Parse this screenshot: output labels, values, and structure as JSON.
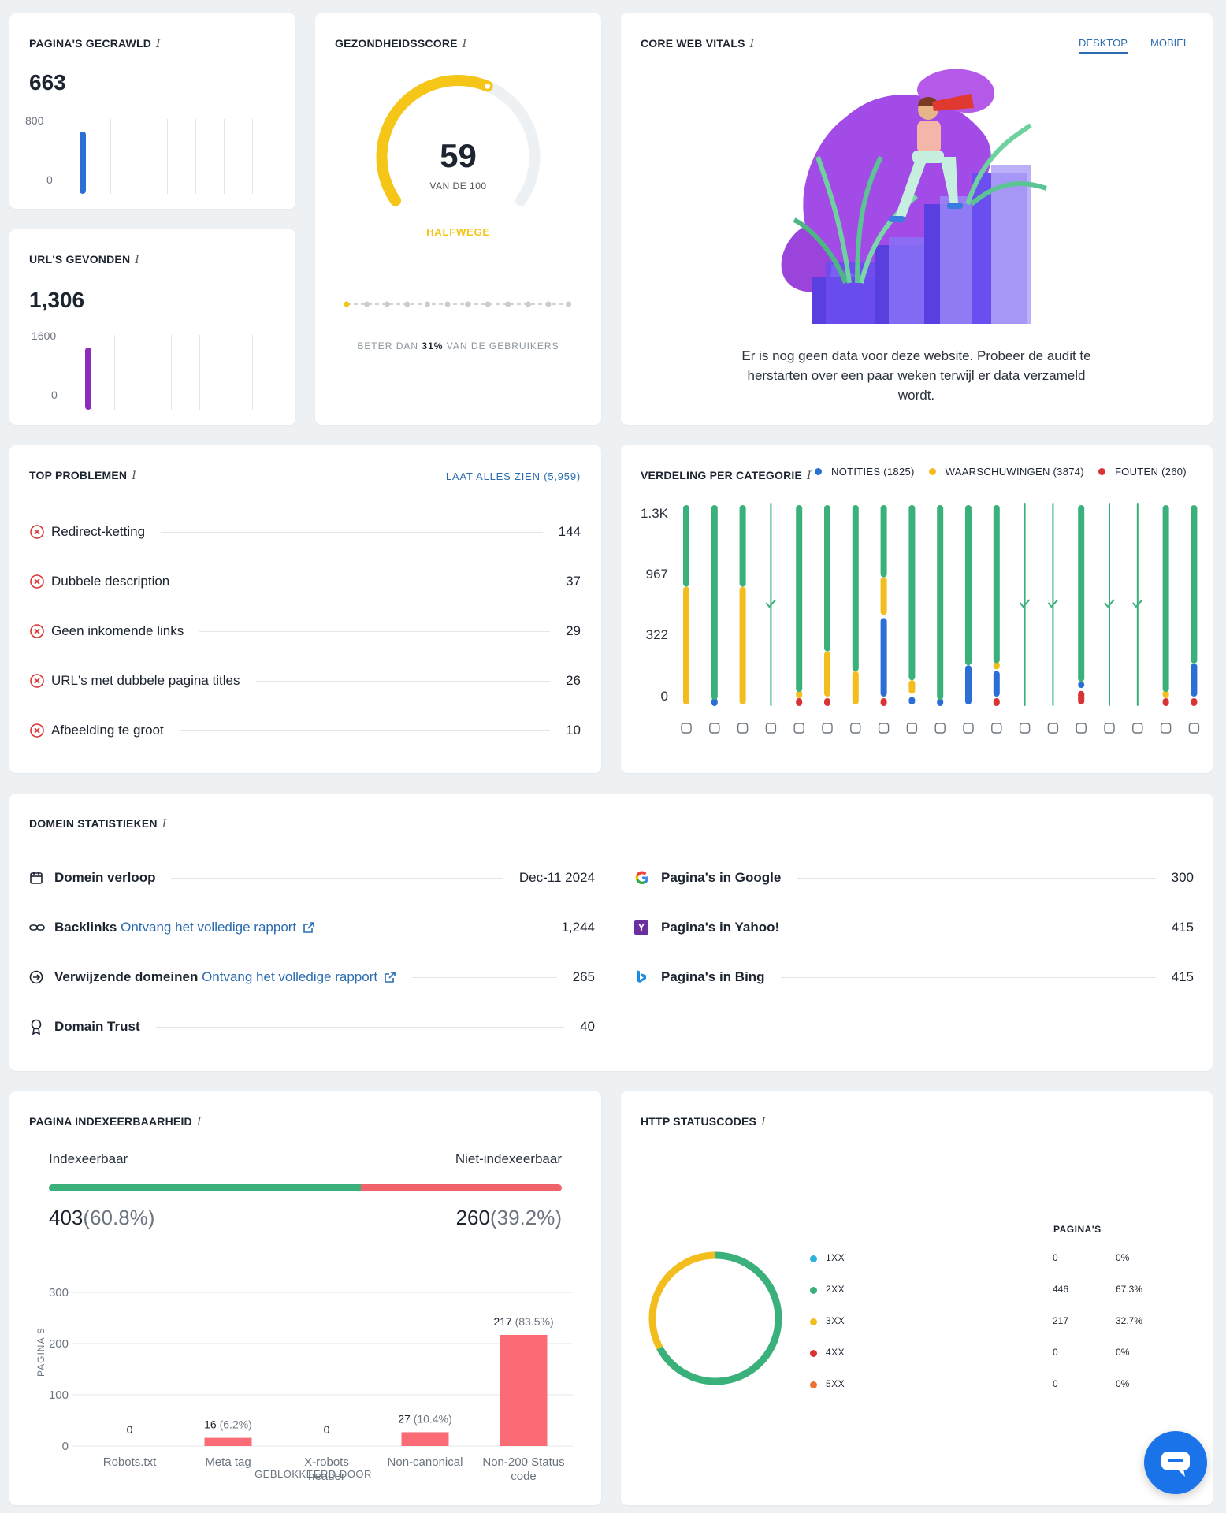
{
  "crawled": {
    "title": "PAGINA'S GECRAWLD",
    "info": "i",
    "value": "663",
    "axis_max": "800",
    "axis_min": "0"
  },
  "urls": {
    "title": "URL'S GEVONDEN",
    "info": "i",
    "value": "1,306",
    "axis_max": "1600",
    "axis_min": "0"
  },
  "health": {
    "title": "GEZONDHEIDSSCORE",
    "info": "i",
    "score": "59",
    "of": "VAN DE 100",
    "status": "HALFWEGE",
    "score_fraction": 0.59,
    "better_pre": "BETER DAN",
    "better_pct": "31%",
    "better_post": "VAN DE GEBRUIKERS"
  },
  "cwv": {
    "title": "CORE WEB VITALS",
    "info": "i",
    "tab_desktop": "DESKTOP",
    "tab_mobile": "MOBIEL",
    "message": "Er is nog geen data voor deze website. Probeer de audit te herstarten over een paar weken terwijl er data verzameld wordt."
  },
  "top": {
    "title": "TOP PROBLEMEN",
    "info": "i",
    "link": "LAAT ALLES ZIEN (5,959)",
    "items": [
      {
        "label": "Redirect-ketting",
        "value": "144"
      },
      {
        "label": "Dubbele description",
        "value": "37"
      },
      {
        "label": "Geen inkomende links",
        "value": "29"
      },
      {
        "label": "URL's met dubbele pagina titles",
        "value": "26"
      },
      {
        "label": "Afbeelding te groot",
        "value": "10"
      }
    ]
  },
  "dist": {
    "title": "VERDELING PER CATEGORIE",
    "info": "i",
    "legend": [
      {
        "label": "NOTITIES (1825)",
        "color": "#2b6fd6"
      },
      {
        "label": "WAARSCHUWINGEN (3874)",
        "color": "#f2bd1d"
      },
      {
        "label": "FOUTEN (260)",
        "color": "#d93434"
      }
    ],
    "y_ticks": [
      "1.3K",
      "967",
      "322",
      "0"
    ]
  },
  "domain": {
    "title": "DOMEIN STATISTIEKEN",
    "info": "i",
    "left": [
      {
        "label": "Domein verloop",
        "link": "",
        "value": "Dec-11 2024"
      },
      {
        "label": "Backlinks",
        "link": "Ontvang het volledige rapport",
        "value": "1,244"
      },
      {
        "label": "Verwijzende domeinen",
        "link": "Ontvang het volledige rapport",
        "value": "265"
      },
      {
        "label": "Domain Trust",
        "link": "",
        "value": "40"
      }
    ],
    "right": [
      {
        "label": "Pagina's in Google",
        "value": "300"
      },
      {
        "label": "Pagina's in Yahoo!",
        "value": "415"
      },
      {
        "label": "Pagina's in Bing",
        "value": "415"
      }
    ]
  },
  "index": {
    "title": "PAGINA INDEXEERBAARHEID",
    "info": "i",
    "left_label": "Indexeerbaar",
    "right_label": "Niet-indexeerbaar",
    "left_val": "403",
    "left_pct": "(60.8%)",
    "right_val": "260",
    "right_pct": "(39.2%)",
    "split_fraction": 0.608,
    "ylabel": "PAGINA'S",
    "xlabel": "GEBLOKKEERD DOOR"
  },
  "http": {
    "title": "HTTP STATUSCODES",
    "info": "i",
    "col_header": "PAGINA'S",
    "rows": [
      {
        "code": "1XX",
        "count": "0",
        "pct": "0%",
        "color": "#2bb3d9"
      },
      {
        "code": "2XX",
        "count": "446",
        "pct": "67.3%",
        "color": "#3ab07a"
      },
      {
        "code": "3XX",
        "count": "217",
        "pct": "32.7%",
        "color": "#f2bd1d"
      },
      {
        "code": "4XX",
        "count": "0",
        "pct": "0%",
        "color": "#d93434"
      },
      {
        "code": "5XX",
        "count": "0",
        "pct": "0%",
        "color": "#f07033"
      }
    ]
  },
  "chart_data": [
    {
      "type": "bar",
      "title": "PAGINA INDEXEERBAARHEID",
      "xlabel": "GEBLOKKEERD DOOR",
      "ylabel": "PAGINA'S",
      "ylim": [
        0,
        300
      ],
      "y_ticks": [
        "300",
        "200",
        "100",
        "0"
      ],
      "categories": [
        "Robots.txt",
        "Meta tag",
        "X-robots header",
        "Non-canonical",
        "Non-200 Status code"
      ],
      "values": [
        0,
        16,
        0,
        27,
        217
      ],
      "labels": [
        {
          "v": "0",
          "p": ""
        },
        {
          "v": "16",
          "p": "(6.2%)"
        },
        {
          "v": "0",
          "p": ""
        },
        {
          "v": "27",
          "p": "(10.4%)"
        },
        {
          "v": "217",
          "p": "(83.5%)"
        }
      ]
    },
    {
      "type": "pie",
      "title": "HTTP STATUSCODES",
      "categories": [
        "1XX",
        "2XX",
        "3XX",
        "4XX",
        "5XX"
      ],
      "values": [
        0,
        446,
        217,
        0,
        0
      ]
    },
    {
      "type": "bar",
      "title": "VERDELING PER CATEGORIE",
      "ylim": [
        0,
        1300
      ],
      "series_colors": {
        "notities": "#2b6fd6",
        "waarschuwingen": "#f2bd1d",
        "fouten": "#d93434",
        "ok": "#3ab07a"
      },
      "columns": [
        {
          "icon": "cube-icon",
          "warn": 780,
          "note": 0,
          "err": 0
        },
        {
          "icon": "bolt-icon",
          "warn": 0,
          "note": 8,
          "err": 0
        },
        {
          "icon": "code-icon",
          "warn": 780,
          "note": 0,
          "err": 0
        },
        {
          "icon": "wind-icon",
          "check": true
        },
        {
          "icon": "text-icon",
          "warn": 20,
          "note": 0,
          "err": 8
        },
        {
          "icon": "image-icon",
          "warn": 300,
          "note": 0,
          "err": 8
        },
        {
          "icon": "mobile-icon",
          "warn": 220,
          "note": 0,
          "err": 0
        },
        {
          "icon": "pulse-icon",
          "warn": 250,
          "note": 520,
          "err": 8
        },
        {
          "icon": "document-icon",
          "warn": 90,
          "note": 50,
          "err": 0
        },
        {
          "icon": "search-icon",
          "warn": 0,
          "note": 8,
          "err": 0
        },
        {
          "icon": "external-link-icon",
          "warn": 0,
          "note": 260,
          "err": 0
        },
        {
          "icon": "link-icon",
          "warn": 30,
          "note": 170,
          "err": 10
        },
        {
          "icon": "shield-icon",
          "check": true
        },
        {
          "icon": "copy-icon",
          "check": true
        },
        {
          "icon": "redirect-icon",
          "warn": 0,
          "note": 40,
          "err": 90
        },
        {
          "icon": "checkbox-icon",
          "check": true
        },
        {
          "icon": "sliders-icon",
          "check": true
        },
        {
          "icon": "underline-icon",
          "warn": 20,
          "note": 0,
          "err": 8
        },
        {
          "icon": "globe-icon",
          "warn": 0,
          "note": 220,
          "err": 8
        }
      ]
    }
  ]
}
